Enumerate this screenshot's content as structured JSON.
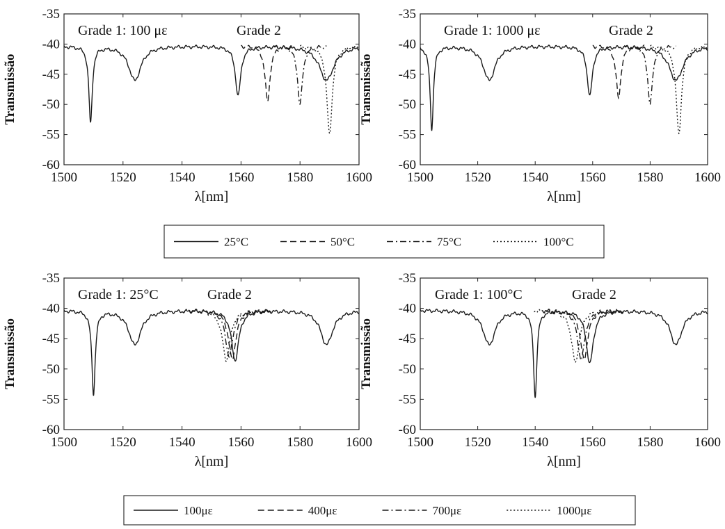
{
  "legends": [
    {
      "items": [
        {
          "label": "25°C",
          "dash": "solid"
        },
        {
          "label": "50°C",
          "dash": "dashed"
        },
        {
          "label": "75°C",
          "dash": "dashdot"
        },
        {
          "label": "100°C",
          "dash": "dotted"
        }
      ]
    },
    {
      "items": [
        {
          "label": "100με",
          "dash": "solid"
        },
        {
          "label": "400με",
          "dash": "dashed"
        },
        {
          "label": "700με",
          "dash": "dashdot"
        },
        {
          "label": "1000με",
          "dash": "dotted"
        }
      ]
    }
  ],
  "chart_data": [
    {
      "type": "line",
      "annotations": [
        "Grade 1: 100 με",
        "Grade 2"
      ],
      "xlabel": "λ[nm]",
      "ylabel": "Transmissão",
      "xlim": [
        1500,
        1600
      ],
      "ylim": [
        -60,
        -35
      ],
      "xticks": [
        1500,
        1520,
        1540,
        1560,
        1580,
        1600
      ],
      "yticks": [
        -35,
        -40,
        -45,
        -50,
        -55,
        -60
      ],
      "baseline": -40.3,
      "series": [
        {
          "name": "25°C",
          "dash": "solid",
          "dips": [
            [
              1509,
              -53,
              0.7
            ],
            [
              1524,
              -46,
              2.5
            ],
            [
              1559,
              -48.5,
              1.1
            ],
            [
              1589,
              -46,
              3.0
            ]
          ]
        },
        {
          "name": "50°C",
          "dash": "dashed",
          "dips": [
            [
              1569,
              -49.5,
              1.0
            ]
          ]
        },
        {
          "name": "75°C",
          "dash": "dashdot",
          "dips": [
            [
              1580,
              -50,
              1.0
            ]
          ]
        },
        {
          "name": "100°C",
          "dash": "dotted",
          "dips": [
            [
              1590,
              -55,
              1.1
            ]
          ]
        }
      ]
    },
    {
      "type": "line",
      "annotations": [
        "Grade 1: 1000 με",
        "Grade 2"
      ],
      "xlabel": "λ[nm]",
      "ylabel": "Transmissão",
      "xlim": [
        1500,
        1600
      ],
      "ylim": [
        -60,
        -35
      ],
      "xticks": [
        1500,
        1520,
        1540,
        1560,
        1580,
        1600
      ],
      "yticks": [
        -35,
        -40,
        -45,
        -50,
        -55,
        -60
      ],
      "baseline": -40.3,
      "series": [
        {
          "name": "25°C",
          "dash": "solid",
          "dips": [
            [
              1504,
              -54,
              0.7
            ],
            [
              1524,
              -46,
              2.5
            ],
            [
              1559,
              -48.5,
              1.1
            ],
            [
              1589,
              -46,
              3.0
            ]
          ]
        },
        {
          "name": "50°C",
          "dash": "dashed",
          "dips": [
            [
              1569,
              -49,
              1.0
            ]
          ]
        },
        {
          "name": "75°C",
          "dash": "dashdot",
          "dips": [
            [
              1580,
              -50,
              1.0
            ]
          ]
        },
        {
          "name": "100°C",
          "dash": "dotted",
          "dips": [
            [
              1590,
              -55,
              1.1
            ]
          ]
        }
      ]
    },
    {
      "type": "line",
      "annotations": [
        "Grade 1: 25°C",
        "Grade 2"
      ],
      "xlabel": "λ[nm]",
      "ylabel": "Transmissão",
      "xlim": [
        1500,
        1600
      ],
      "ylim": [
        -60,
        -35
      ],
      "xticks": [
        1500,
        1520,
        1540,
        1560,
        1580,
        1600
      ],
      "yticks": [
        -35,
        -40,
        -45,
        -50,
        -55,
        -60
      ],
      "baseline": -40.3,
      "series": [
        {
          "name": "100με",
          "dash": "solid",
          "dips": [
            [
              1510,
              -54,
              0.7
            ],
            [
              1524,
              -46,
              2.5
            ],
            [
              1558,
              -48.5,
              1.5
            ],
            [
              1589,
              -46,
              2.5
            ]
          ]
        },
        {
          "name": "400με",
          "dash": "dashed",
          "dips": [
            [
              1557,
              -48.5,
              1.5
            ]
          ]
        },
        {
          "name": "700με",
          "dash": "dashdot",
          "dips": [
            [
              1556,
              -48,
              1.5
            ]
          ]
        },
        {
          "name": "1000με",
          "dash": "dotted",
          "dips": [
            [
              1555,
              -48.5,
              1.6
            ]
          ]
        }
      ]
    },
    {
      "type": "line",
      "annotations": [
        "Grade 1: 100°C",
        "Grade 2"
      ],
      "xlabel": "λ[nm]",
      "ylabel": "Transmissão",
      "xlim": [
        1500,
        1600
      ],
      "ylim": [
        -60,
        -35
      ],
      "xticks": [
        1500,
        1520,
        1540,
        1560,
        1580,
        1600
      ],
      "yticks": [
        -35,
        -40,
        -45,
        -50,
        -55,
        -60
      ],
      "baseline": -40.3,
      "series": [
        {
          "name": "100με",
          "dash": "solid",
          "dips": [
            [
              1524,
              -46,
              2.5
            ],
            [
              1540,
              -54.5,
              0.7
            ],
            [
              1559,
              -49,
              1.5
            ],
            [
              1589,
              -46,
              2.5
            ]
          ]
        },
        {
          "name": "400με",
          "dash": "dashed",
          "dips": [
            [
              1557,
              -48.5,
              1.5
            ]
          ]
        },
        {
          "name": "700με",
          "dash": "dashdot",
          "dips": [
            [
              1556,
              -48.5,
              1.5
            ]
          ]
        },
        {
          "name": "1000με",
          "dash": "dotted",
          "dips": [
            [
              1554,
              -49,
              1.6
            ]
          ]
        }
      ]
    }
  ]
}
